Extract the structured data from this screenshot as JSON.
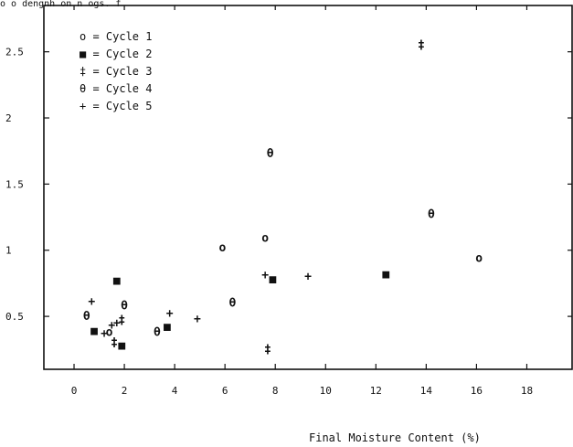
{
  "top_fragment": "o o dengnh on n ogs. f",
  "chart_data": {
    "type": "scatter",
    "xlabel": "Final Moisture Content (%)",
    "ylabel": "",
    "xlim": [
      -1.2,
      19.8
    ],
    "ylim": [
      0.1,
      2.85
    ],
    "x_ticks": [
      0,
      2,
      4,
      6,
      8,
      10,
      12,
      14,
      16,
      18
    ],
    "y_ticks": [
      0.5,
      1,
      1.5,
      2,
      2.5
    ],
    "x_tick_labels": [
      "0",
      "2",
      "4",
      "6",
      "8",
      "10",
      "12",
      "14",
      "16",
      "18"
    ],
    "y_tick_labels": [
      "0.5",
      "1",
      "1.5",
      "2",
      "2.5"
    ],
    "legend_position": "top-left",
    "series": [
      {
        "name": "Cycle 1",
        "marker": "o",
        "legend_label": "o = Cycle 1",
        "points": [
          [
            1.4,
            0.38
          ],
          [
            5.9,
            1.02
          ],
          [
            7.6,
            1.09
          ],
          [
            16.1,
            0.94
          ]
        ]
      },
      {
        "name": "Cycle 2",
        "marker": "■",
        "legend_label": "■ = Cycle 2",
        "points": [
          [
            0.8,
            0.39
          ],
          [
            1.7,
            0.77
          ],
          [
            1.9,
            0.28
          ],
          [
            3.7,
            0.42
          ],
          [
            7.9,
            0.78
          ],
          [
            12.4,
            0.82
          ]
        ]
      },
      {
        "name": "Cycle 3",
        "marker": "‡",
        "legend_label": "‡ = Cycle 3",
        "points": [
          [
            1.6,
            0.3
          ],
          [
            1.9,
            0.47
          ],
          [
            7.7,
            0.25
          ],
          [
            13.8,
            2.55
          ]
        ]
      },
      {
        "name": "Cycle 4",
        "marker": "θ",
        "legend_label": "θ = Cycle 4",
        "points": [
          [
            0.5,
            0.5
          ],
          [
            2.0,
            0.58
          ],
          [
            3.3,
            0.38
          ],
          [
            6.3,
            0.6
          ],
          [
            7.8,
            1.73
          ],
          [
            14.2,
            1.27
          ]
        ]
      },
      {
        "name": "Cycle 5",
        "marker": "+",
        "legend_label": "+ = Cycle 5",
        "points": [
          [
            0.7,
            0.61
          ],
          [
            1.2,
            0.37
          ],
          [
            1.5,
            0.43
          ],
          [
            1.7,
            0.45
          ],
          [
            3.8,
            0.52
          ],
          [
            4.9,
            0.48
          ],
          [
            7.6,
            0.81
          ],
          [
            9.3,
            0.8
          ]
        ]
      }
    ]
  }
}
